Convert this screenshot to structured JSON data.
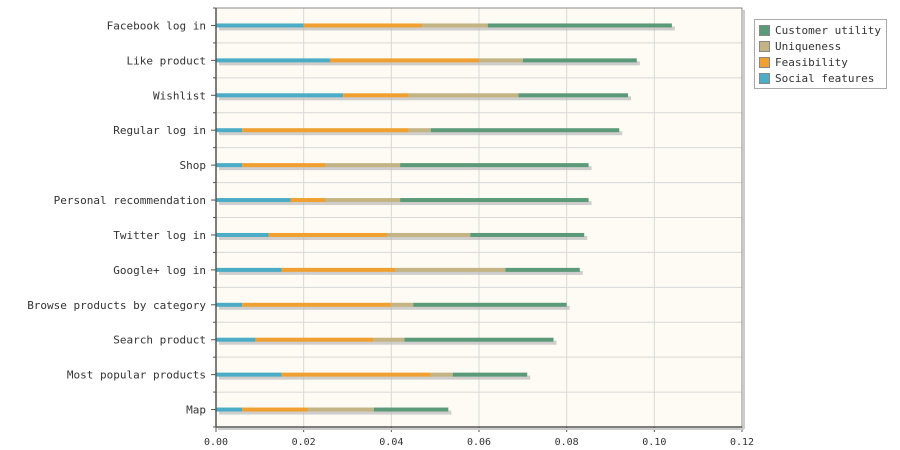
{
  "chart_data": {
    "type": "bar",
    "orientation": "horizontal",
    "stacked": true,
    "title": "",
    "xlabel": "",
    "ylabel": "",
    "xlim": [
      0,
      0.12
    ],
    "x_ticks": [
      "0.00",
      "0.02",
      "0.04",
      "0.06",
      "0.08",
      "0.10",
      "0.12"
    ],
    "grid": true,
    "legend_position": "top-right",
    "categories": [
      "Facebook log in",
      "Like product",
      "Wishlist",
      "Regular log in",
      "Shop",
      "Personal recommendation",
      "Twitter log in",
      "Google+ log in",
      "Browse products by category",
      "Search product",
      "Most popular products",
      "Map"
    ],
    "series": [
      {
        "name": "Social features",
        "color": "#4bacc6",
        "values": [
          0.02,
          0.026,
          0.029,
          0.006,
          0.006,
          0.017,
          0.012,
          0.015,
          0.006,
          0.009,
          0.015,
          0.006
        ]
      },
      {
        "name": "Feasibility",
        "color": "#f0a030",
        "values": [
          0.027,
          0.034,
          0.015,
          0.038,
          0.019,
          0.008,
          0.027,
          0.026,
          0.034,
          0.027,
          0.034,
          0.015
        ]
      },
      {
        "name": "Uniqueness",
        "color": "#c4b484",
        "values": [
          0.015,
          0.01,
          0.025,
          0.005,
          0.017,
          0.017,
          0.019,
          0.025,
          0.005,
          0.007,
          0.005,
          0.015
        ]
      },
      {
        "name": "Customer utility",
        "color": "#5a9a78",
        "values": [
          0.042,
          0.026,
          0.025,
          0.043,
          0.043,
          0.043,
          0.026,
          0.017,
          0.035,
          0.034,
          0.017,
          0.017
        ]
      }
    ],
    "legend_order": [
      "Customer utility",
      "Uniqueness",
      "Feasibility",
      "Social features"
    ]
  }
}
